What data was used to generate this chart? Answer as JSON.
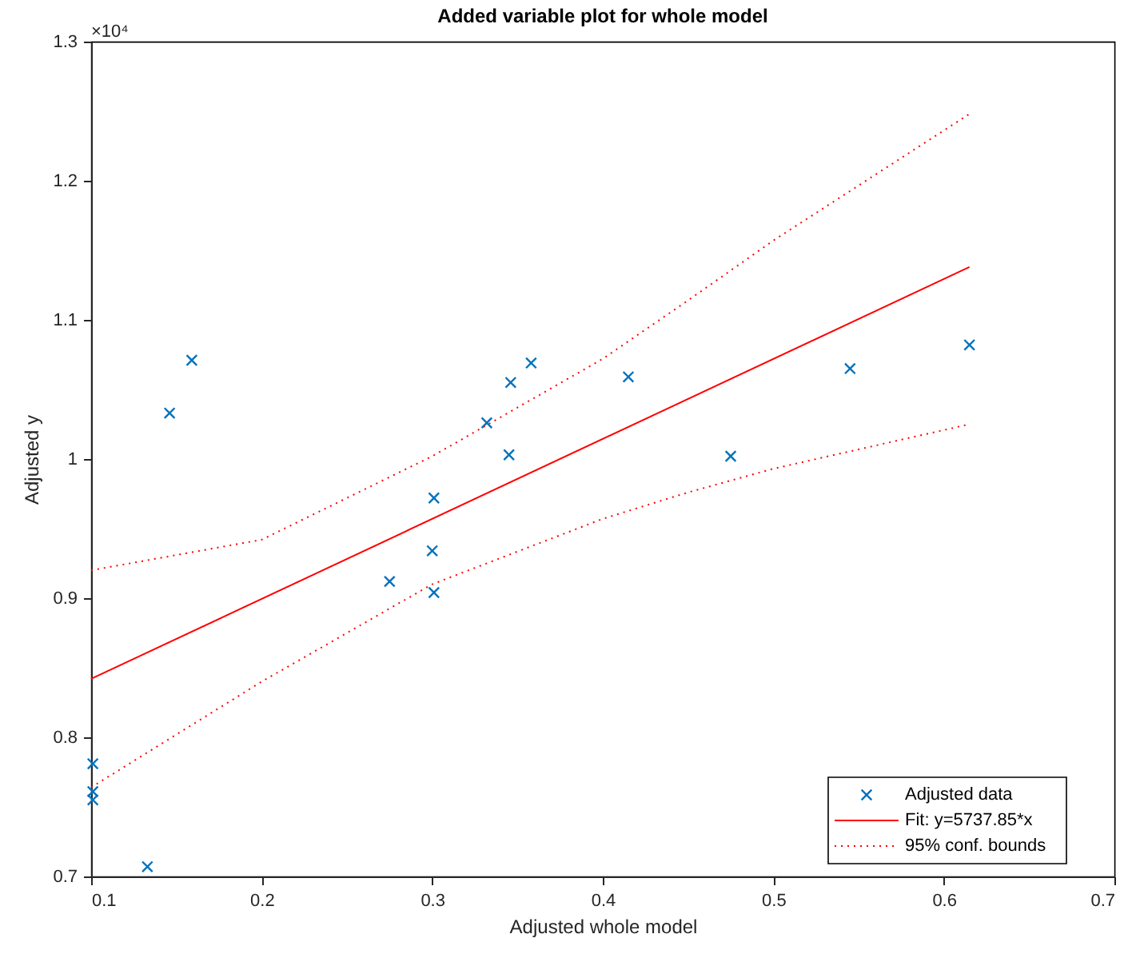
{
  "chart_data": {
    "type": "scatter",
    "title": "Added variable plot for whole model",
    "xlabel": "Adjusted whole model",
    "ylabel": "Adjusted y",
    "annotations": [
      "×10⁴"
    ],
    "series": [
      {
        "name": "Adjusted data",
        "color": "#0072bd",
        "marker": "cross",
        "x": [
          0.101,
          0.101,
          0.101,
          0.133,
          0.146,
          0.159,
          0.275,
          0.3,
          0.301,
          0.301,
          0.332,
          0.345,
          0.346,
          0.358,
          0.415,
          0.475,
          0.545,
          0.615
        ],
        "values": [
          0.781,
          0.761,
          0.755,
          0.707,
          1.033,
          1.071,
          0.912,
          0.934,
          0.904,
          0.972,
          1.026,
          1.003,
          1.055,
          1.069,
          1.059,
          1.002,
          1.065,
          1.082
        ]
      },
      {
        "name": "Fit: y=5737.85*x",
        "type": "line",
        "color": "#ff0000",
        "line_style": "solid",
        "x": [
          0.1,
          0.615
        ],
        "values": [
          0.842,
          1.138
        ]
      },
      {
        "name": "95% conf. bounds",
        "type": "line",
        "color": "#ff0000",
        "line_style": "dotted",
        "x": [
          0.1,
          0.2,
          0.3,
          0.4,
          0.45,
          0.5,
          0.615
        ],
        "values": [
          0.92,
          0.942,
          1.002,
          1.072,
          1.114,
          1.157,
          1.248
        ]
      },
      {
        "type": "line",
        "color": "#ff0000",
        "line_style": "dotted",
        "x": [
          0.1,
          0.2,
          0.3,
          0.4,
          0.45,
          0.5,
          0.615
        ],
        "values": [
          0.764,
          0.84,
          0.91,
          0.957,
          0.976,
          0.993,
          1.025
        ]
      }
    ],
    "xlim": [
      0.1,
      0.7
    ],
    "xticks": [
      0.1,
      0.2,
      0.3,
      0.4,
      0.5,
      0.6,
      0.7
    ],
    "ylim": [
      0.7,
      1.3
    ],
    "yticks": [
      0.7,
      0.8,
      0.9,
      1,
      1.1,
      1.2,
      1.3
    ],
    "grid": false,
    "legend": "bottom right"
  }
}
